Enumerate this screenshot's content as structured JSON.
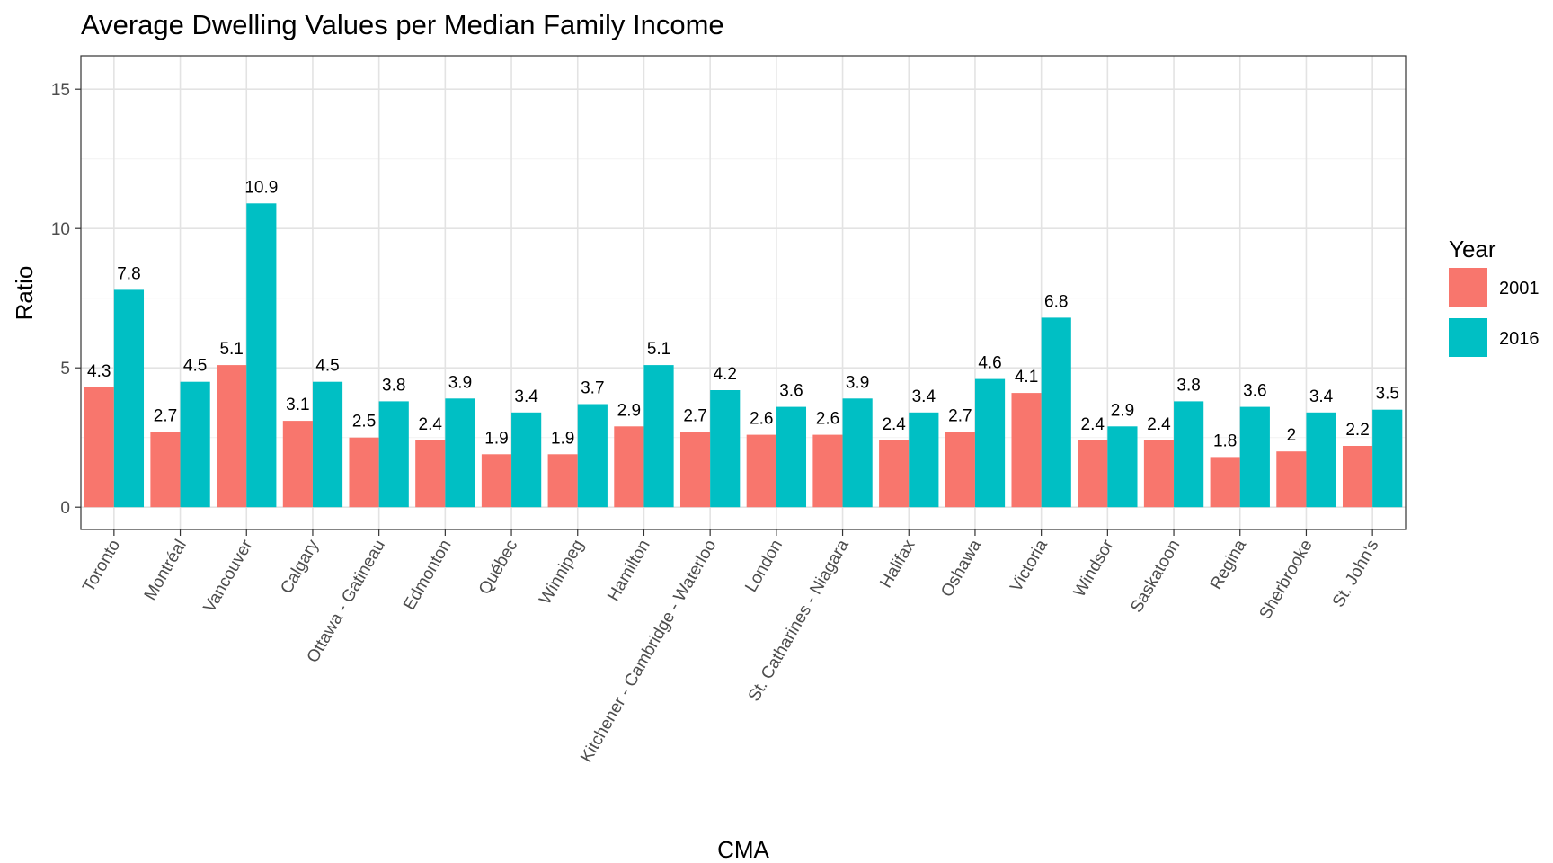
{
  "chart_data": {
    "type": "bar",
    "title": "Average Dwelling Values per Median Family Income",
    "xlabel": "CMA",
    "ylabel": "Ratio",
    "ylim": [
      -0.8,
      16.2
    ],
    "yticks": [
      0,
      5,
      10,
      15
    ],
    "yminor": [
      2.5,
      7.5,
      12.5
    ],
    "grid": true,
    "legend": {
      "title": "Year",
      "placement": "right"
    },
    "categories": [
      "Toronto",
      "Montréal",
      "Vancouver",
      "Calgary",
      "Ottawa - Gatineau",
      "Edmonton",
      "Québec",
      "Winnipeg",
      "Hamilton",
      "Kitchener - Cambridge - Waterloo",
      "London",
      "St. Catharines - Niagara",
      "Halifax",
      "Oshawa",
      "Victoria",
      "Windsor",
      "Saskatoon",
      "Regina",
      "Sherbrooke",
      "St. John's"
    ],
    "series": [
      {
        "name": "2001",
        "color": "#F8766D",
        "values": [
          4.3,
          2.7,
          5.1,
          3.1,
          2.5,
          2.4,
          1.9,
          1.9,
          2.9,
          2.7,
          2.6,
          2.6,
          2.4,
          2.7,
          4.1,
          2.4,
          2.4,
          1.8,
          2.0,
          2.2
        ],
        "labels": [
          "4.3",
          "2.7",
          "5.1",
          "3.1",
          "2.5",
          "2.4",
          "1.9",
          "1.9",
          "2.9",
          "2.7",
          "2.6",
          "2.6",
          "2.4",
          "2.7",
          "4.1",
          "2.4",
          "2.4",
          "1.8",
          "2",
          "2.2"
        ]
      },
      {
        "name": "2016",
        "color": "#00BFC4",
        "values": [
          7.8,
          4.5,
          10.9,
          4.5,
          3.8,
          3.9,
          3.4,
          3.7,
          5.1,
          4.2,
          3.6,
          3.9,
          3.4,
          4.6,
          6.8,
          2.9,
          3.8,
          3.6,
          3.4,
          3.5
        ],
        "labels": [
          "7.8",
          "4.5",
          "10.9",
          "4.5",
          "3.8",
          "3.9",
          "3.4",
          "3.7",
          "5.1",
          "4.2",
          "3.6",
          "3.9",
          "3.4",
          "4.6",
          "6.8",
          "2.9",
          "3.8",
          "3.6",
          "3.4",
          "3.5"
        ]
      }
    ]
  }
}
